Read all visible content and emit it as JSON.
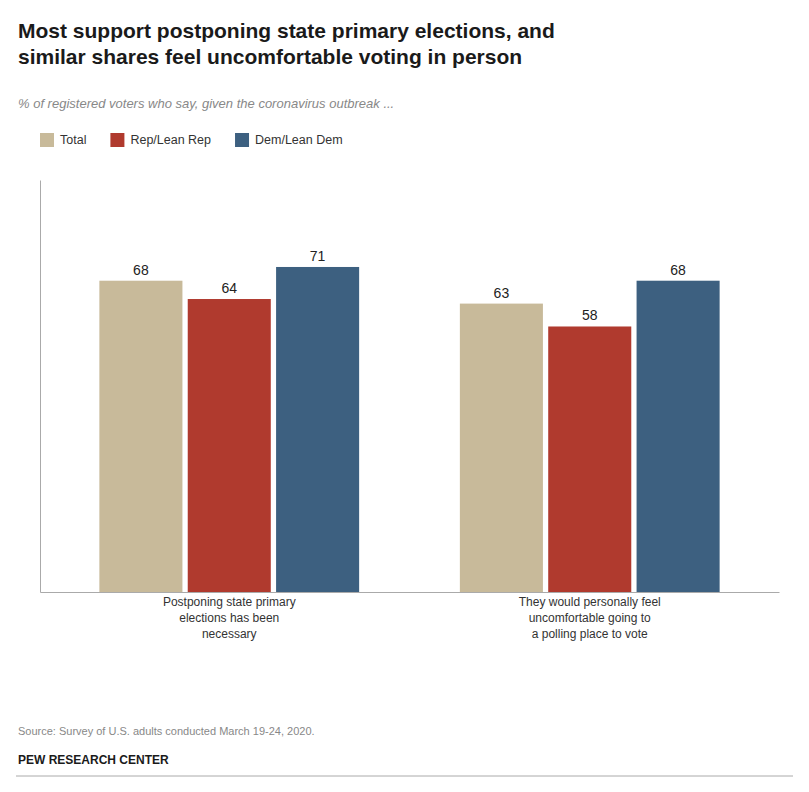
{
  "chart_data": {
    "type": "bar",
    "title": "Most support postponing state primary elections, and\nsimilar shares feel uncomfortable voting in person",
    "subtitle": "% of registered voters who say, given the coronavirus outbreak ...",
    "categories": [
      "Postponing state primary\nelections has been\nnecessary",
      "They would personally feel\nuncomfortable going to\na polling place to vote"
    ],
    "series": [
      {
        "name": "Total",
        "color": "#c8ba9a",
        "values": [
          68,
          63
        ]
      },
      {
        "name": "Rep/Lean Rep",
        "color": "#b03a2e",
        "values": [
          64,
          58
        ]
      },
      {
        "name": "Dem/Lean Dem",
        "color": "#3d6080",
        "values": [
          71,
          68
        ]
      }
    ],
    "ylim": [
      0,
      90
    ],
    "data_labels": true,
    "tick_labels": "x",
    "grid": false,
    "legend": "top",
    "annotations": [
      "Source: Survey of U.S. adults conducted March 19-24, 2020.",
      "PEW RESEARCH CENTER"
    ]
  }
}
